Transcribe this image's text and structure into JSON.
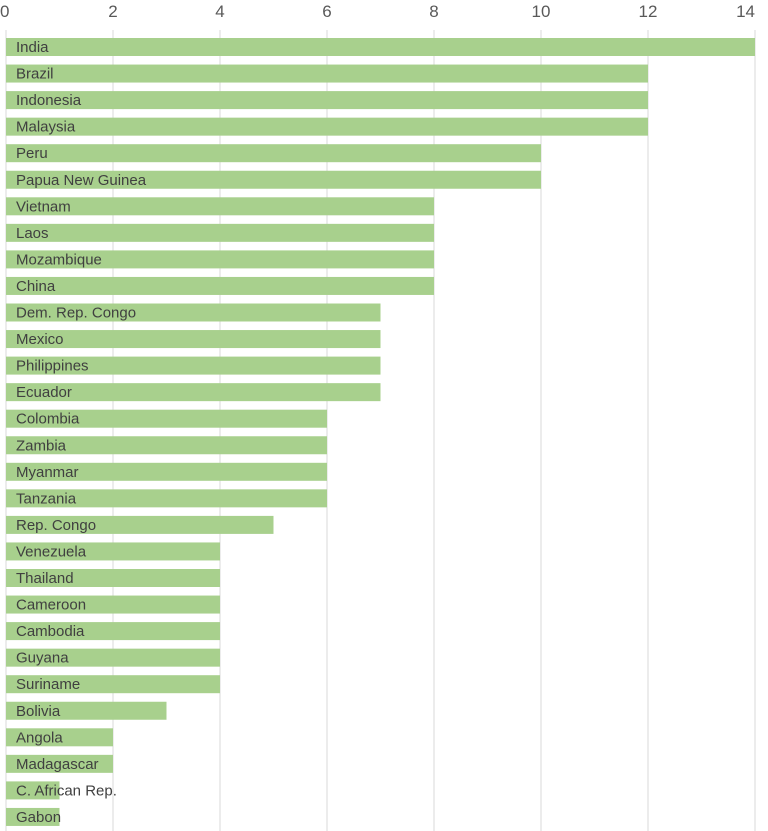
{
  "colors": {
    "bar": "#a8d08d",
    "grid": "#d9d9d9",
    "label": "#404040",
    "tick": "#595959"
  },
  "chart_data": {
    "type": "bar",
    "orientation": "horizontal",
    "title": "",
    "xlabel": "",
    "ylabel": "",
    "xlim": [
      0,
      14
    ],
    "x_ticks": [
      0,
      2,
      4,
      6,
      8,
      10,
      12,
      14
    ],
    "x_axis_position": "top",
    "grid": true,
    "legend": "none",
    "categories": [
      "India",
      "Brazil",
      "Indonesia",
      "Malaysia",
      "Peru",
      "Papua New Guinea",
      "Vietnam",
      "Laos",
      "Mozambique",
      "China",
      "Dem. Rep. Congo",
      "Mexico",
      "Philippines",
      "Ecuador",
      "Colombia",
      "Zambia",
      "Myanmar",
      "Tanzania",
      "Rep. Congo",
      "Venezuela",
      "Thailand",
      "Cameroon",
      "Cambodia",
      "Guyana",
      "Suriname",
      "Bolivia",
      "Angola",
      "Madagascar",
      "C. African Rep.",
      "Gabon"
    ],
    "values": [
      14,
      12,
      12,
      12,
      10,
      10,
      8,
      8,
      8,
      8,
      7,
      7,
      7,
      7,
      6,
      6,
      6,
      6,
      5,
      4,
      4,
      4,
      4,
      4,
      4,
      3,
      2,
      2,
      1,
      1
    ]
  }
}
